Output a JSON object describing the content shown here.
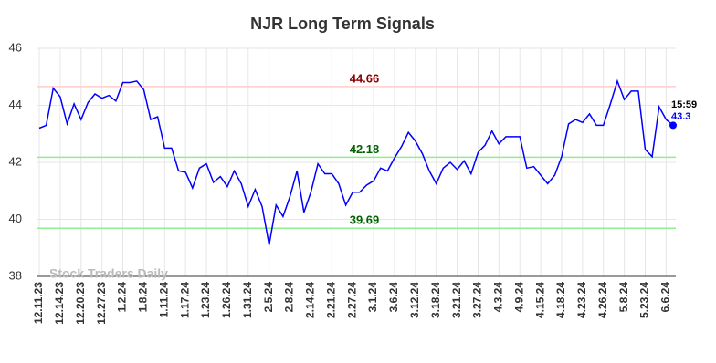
{
  "chart_data": {
    "type": "line",
    "title": "NJR Long Term Signals",
    "categories": [
      "12.11.23",
      null,
      null,
      "12.14.23",
      null,
      null,
      "12.20.23",
      null,
      null,
      "12.27.23",
      null,
      null,
      "1.2.24",
      null,
      null,
      "1.8.24",
      null,
      null,
      "1.11.24",
      null,
      null,
      "1.17.24",
      null,
      null,
      "1.23.24",
      null,
      null,
      "1.26.24",
      null,
      null,
      "1.31.24",
      null,
      null,
      "2.5.24",
      null,
      null,
      "2.8.24",
      null,
      null,
      "2.14.24",
      null,
      null,
      "2.21.24",
      null,
      null,
      "2.27.24",
      null,
      null,
      "3.1.24",
      null,
      null,
      "3.6.24",
      null,
      null,
      "3.12.24",
      null,
      null,
      "3.18.24",
      null,
      null,
      "3.21.24",
      null,
      null,
      "3.27.24",
      null,
      null,
      "4.3.24",
      null,
      null,
      "4.9.24",
      null,
      null,
      "4.15.24",
      null,
      null,
      "4.18.24",
      null,
      null,
      "4.23.24",
      null,
      null,
      "4.26.24",
      null,
      null,
      "5.8.24",
      null,
      null,
      "5.23.24",
      null,
      null,
      "6.6.24",
      null
    ],
    "series": [
      {
        "color": "#0000ff",
        "values": [
          43.2,
          43.3,
          44.6,
          44.3,
          43.35,
          44.05,
          43.5,
          44.1,
          44.4,
          44.25,
          44.35,
          44.15,
          44.8,
          44.8,
          44.85,
          44.55,
          43.5,
          43.6,
          42.5,
          42.5,
          41.7,
          41.65,
          41.1,
          41.8,
          41.95,
          41.3,
          41.5,
          41.15,
          41.7,
          41.25,
          40.45,
          41.05,
          40.45,
          39.1,
          40.5,
          40.1,
          40.8,
          41.7,
          40.25,
          40.95,
          41.95,
          41.6,
          41.6,
          41.25,
          40.5,
          40.95,
          40.95,
          41.2,
          41.35,
          41.8,
          41.7,
          42.15,
          42.55,
          43.05,
          42.75,
          42.3,
          41.7,
          41.25,
          41.8,
          42.0,
          41.75,
          42.05,
          41.6,
          42.35,
          42.6,
          43.1,
          42.65,
          42.9,
          42.9,
          42.9,
          41.8,
          41.85,
          41.55,
          41.25,
          41.55,
          42.2,
          43.35,
          43.5,
          43.4,
          43.7,
          43.3,
          43.3,
          44.05,
          44.85,
          44.2,
          44.5,
          44.5,
          42.45,
          42.2,
          43.95,
          43.5,
          43.3
        ]
      }
    ],
    "ylim": [
      38,
      46
    ],
    "yticks": [
      38,
      40,
      42,
      44,
      46
    ],
    "grid": true,
    "hlines": [
      {
        "value": 44.66,
        "color": "#ffcccc",
        "label_color": "#8b0000"
      },
      {
        "value": 42.18,
        "color": "#90ee90",
        "label_color": "#006400"
      },
      {
        "value": 39.69,
        "color": "#90ee90",
        "label_color": "#006400"
      }
    ],
    "last_time": "15:59",
    "watermark": "Stock Traders Daily"
  }
}
